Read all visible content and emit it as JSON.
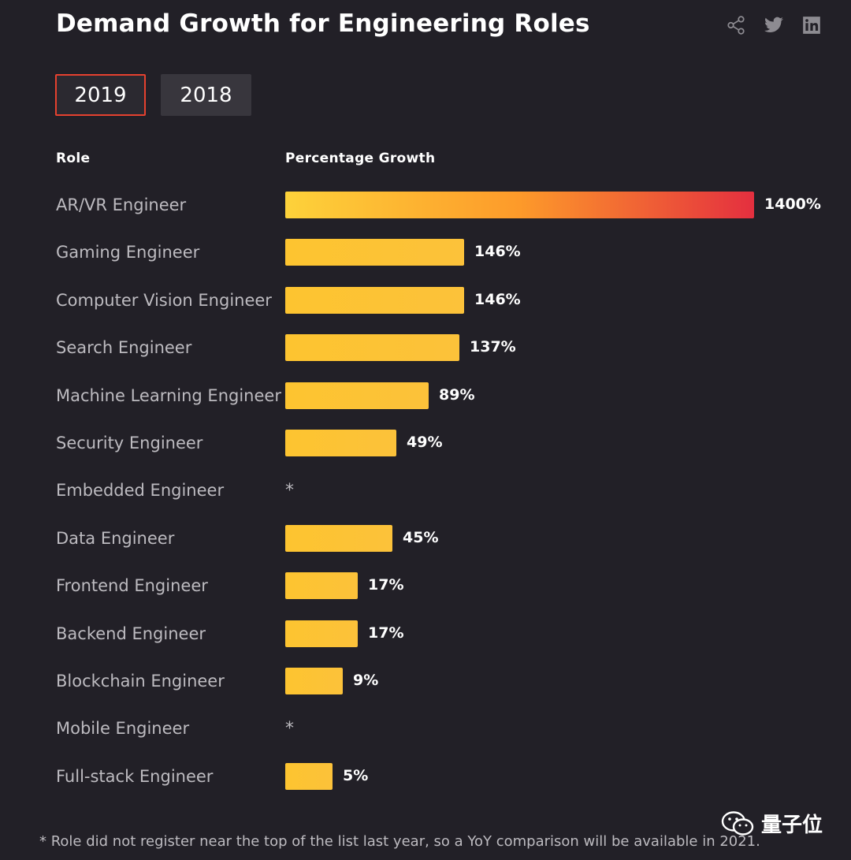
{
  "title": "Demand Growth for Engineering Roles",
  "share": {
    "icons": [
      "share-icon",
      "twitter-icon",
      "linkedin-icon"
    ]
  },
  "tabs": [
    {
      "label": "2019",
      "active": true
    },
    {
      "label": "2018",
      "active": false
    }
  ],
  "columns": {
    "role": "Role",
    "growth": "Percentage Growth"
  },
  "colors": {
    "bar": "#fdc430",
    "gradient_start": "#fdd23a",
    "gradient_end": "#e42f3f",
    "tab_active_border": "#e5412f"
  },
  "chart_data": {
    "type": "bar",
    "orientation": "horizontal",
    "title": "Demand Growth for Engineering Roles",
    "xlabel": "Percentage Growth",
    "ylabel": "Role",
    "categories": [
      "AR/VR Engineer",
      "Gaming Engineer",
      "Computer Vision Engineer",
      "Search Engineer",
      "Machine Learning Engineer",
      "Security Engineer",
      "Embedded Engineer",
      "Data Engineer",
      "Frontend Engineer",
      "Backend Engineer",
      "Blockchain Engineer",
      "Mobile Engineer",
      "Full-stack Engineer"
    ],
    "values": [
      1400,
      146,
      146,
      137,
      89,
      49,
      null,
      45,
      17,
      17,
      9,
      null,
      5
    ],
    "labels": [
      "1400%",
      "146%",
      "146%",
      "137%",
      "89%",
      "49%",
      "*",
      "45%",
      "17%",
      "17%",
      "9%",
      "*",
      "5%"
    ]
  },
  "footnote": "* Role did not register near the top of the list last year, so a YoY comparison will be available in 2021.",
  "watermark": "量子位"
}
